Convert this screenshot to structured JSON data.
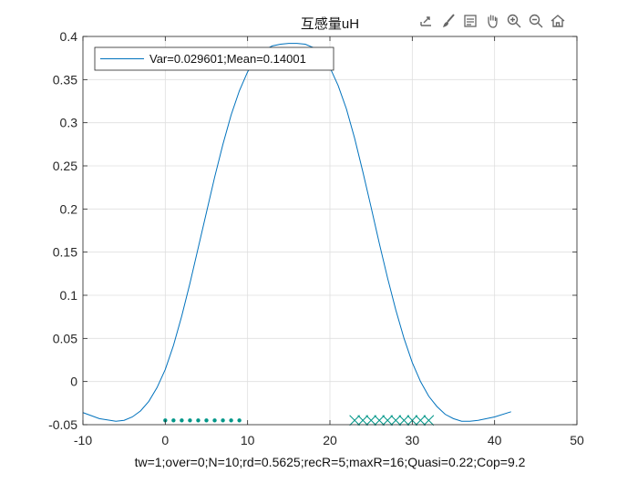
{
  "toolbar": {
    "icons": [
      "export-icon",
      "brush-icon",
      "legend-icon",
      "pan-icon",
      "zoom-in-icon",
      "zoom-out-icon",
      "home-icon"
    ]
  },
  "chart_data": {
    "type": "line",
    "title": "互感量uH",
    "xlabel": "tw=1;over=0;N=10;rd=0.5625;recR=5;maxR=16;Quasi=0.22;Cop=9.2",
    "ylabel": "",
    "xlim": [
      -10,
      50
    ],
    "ylim": [
      -0.05,
      0.4
    ],
    "xticks": [
      -10,
      0,
      10,
      20,
      30,
      40,
      50
    ],
    "yticks": [
      -0.05,
      0,
      0.05,
      0.1,
      0.15,
      0.2,
      0.25,
      0.3,
      0.35,
      0.4
    ],
    "xtick_labels": [
      "-10",
      "0",
      "10",
      "20",
      "30",
      "40",
      "50"
    ],
    "ytick_labels": [
      "-0.05",
      "0",
      "0.05",
      "0.1",
      "0.15",
      "0.2",
      "0.25",
      "0.3",
      "0.35",
      "0.4"
    ],
    "grid": true,
    "legend": {
      "position": "top-left",
      "entries": [
        "Var=0.029601;Mean=0.14001"
      ]
    },
    "series": [
      {
        "name": "Var=0.029601;Mean=0.14001",
        "color": "#0072BD",
        "x": [
          -10,
          -8,
          -6,
          -5,
          -4,
          -3,
          -2,
          -1,
          0,
          1,
          2,
          3,
          4,
          5,
          6,
          7,
          8,
          9,
          10,
          11,
          12,
          13,
          14,
          15,
          16,
          17,
          18,
          19,
          20,
          21,
          22,
          23,
          24,
          25,
          26,
          27,
          28,
          29,
          30,
          31,
          32,
          33,
          34,
          35,
          36,
          37,
          38,
          40,
          42
        ],
        "y": [
          -0.036,
          -0.043,
          -0.046,
          -0.045,
          -0.041,
          -0.034,
          -0.023,
          -0.007,
          0.014,
          0.042,
          0.076,
          0.114,
          0.155,
          0.196,
          0.237,
          0.275,
          0.309,
          0.337,
          0.359,
          0.374,
          0.384,
          0.389,
          0.391,
          0.392,
          0.392,
          0.391,
          0.387,
          0.378,
          0.364,
          0.343,
          0.316,
          0.282,
          0.243,
          0.202,
          0.16,
          0.12,
          0.083,
          0.05,
          0.022,
          0.0,
          -0.017,
          -0.029,
          -0.038,
          -0.043,
          -0.046,
          -0.046,
          -0.045,
          -0.041,
          -0.035
        ]
      },
      {
        "name": "",
        "marker": "dot",
        "color": "#009688",
        "x": [
          0,
          1,
          2,
          3,
          4,
          5,
          6,
          7,
          8,
          9
        ],
        "y": [
          -0.045,
          -0.045,
          -0.045,
          -0.045,
          -0.045,
          -0.045,
          -0.045,
          -0.045,
          -0.045,
          -0.045
        ]
      },
      {
        "name": "",
        "marker": "x",
        "color": "#009688",
        "x": [
          23,
          24,
          25,
          26,
          27,
          28,
          29,
          30,
          31,
          32
        ],
        "y": [
          -0.045,
          -0.045,
          -0.045,
          -0.045,
          -0.045,
          -0.045,
          -0.045,
          -0.045,
          -0.045,
          -0.045
        ]
      }
    ]
  }
}
